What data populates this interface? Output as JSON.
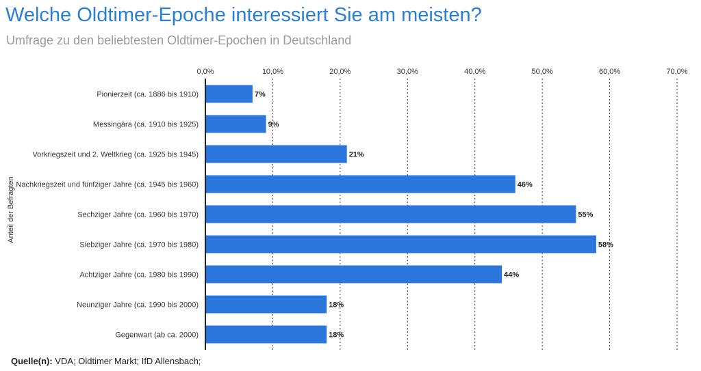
{
  "title": "Welche Oldtimer-Epoche interessiert Sie am meisten?",
  "subtitle": "Umfrage zu den beliebtesten Oldtimer-Epochen in Deutschland",
  "source": {
    "label": "Quelle(n):",
    "text": "VDA; Oldtimer Markt; IfD Allensbach;"
  },
  "chart_data": {
    "type": "bar",
    "orientation": "horizontal",
    "title": "Welche Oldtimer-Epoche interessiert Sie am meisten?",
    "subtitle": "Umfrage zu den beliebtesten Oldtimer-Epochen in Deutschland",
    "ylabel": "Anteil der Befragten",
    "xlabel": "",
    "categories": [
      "Pionierzeit (ca. 1886 bis 1910)",
      "Messingära (ca. 1910 bis 1925)",
      "Vorkriegszeit und 2. Weltkrieg (ca. 1925 bis 1945)",
      "Nachkriegszeit und fünfziger Jahre (ca. 1945 bis 1960)",
      "Sechziger Jahre (ca. 1960 bis 1970)",
      "Siebziger Jahre (ca. 1970 bis 1980)",
      "Achtziger Jahre (ca. 1980 bis 1990)",
      "Neunziger Jahre (ca. 1990 bis 2000)",
      "Gegenwart (ab ca. 2000)"
    ],
    "values": [
      7,
      9,
      21,
      46,
      55,
      58,
      44,
      18,
      18
    ],
    "value_labels": [
      "7%",
      "9%",
      "21%",
      "46%",
      "55%",
      "58%",
      "44%",
      "18%",
      "18%"
    ],
    "xlim": [
      0,
      70
    ],
    "ticks": [
      0,
      10,
      20,
      30,
      40,
      50,
      60,
      70
    ],
    "tick_labels": [
      "0,0%",
      "10,0%",
      "20,0%",
      "30,0%",
      "40,0%",
      "50,0%",
      "60,0%",
      "70,0%"
    ],
    "axis_position": "top",
    "grid": "vertical dotted",
    "bar_color": "#2a76dd"
  }
}
